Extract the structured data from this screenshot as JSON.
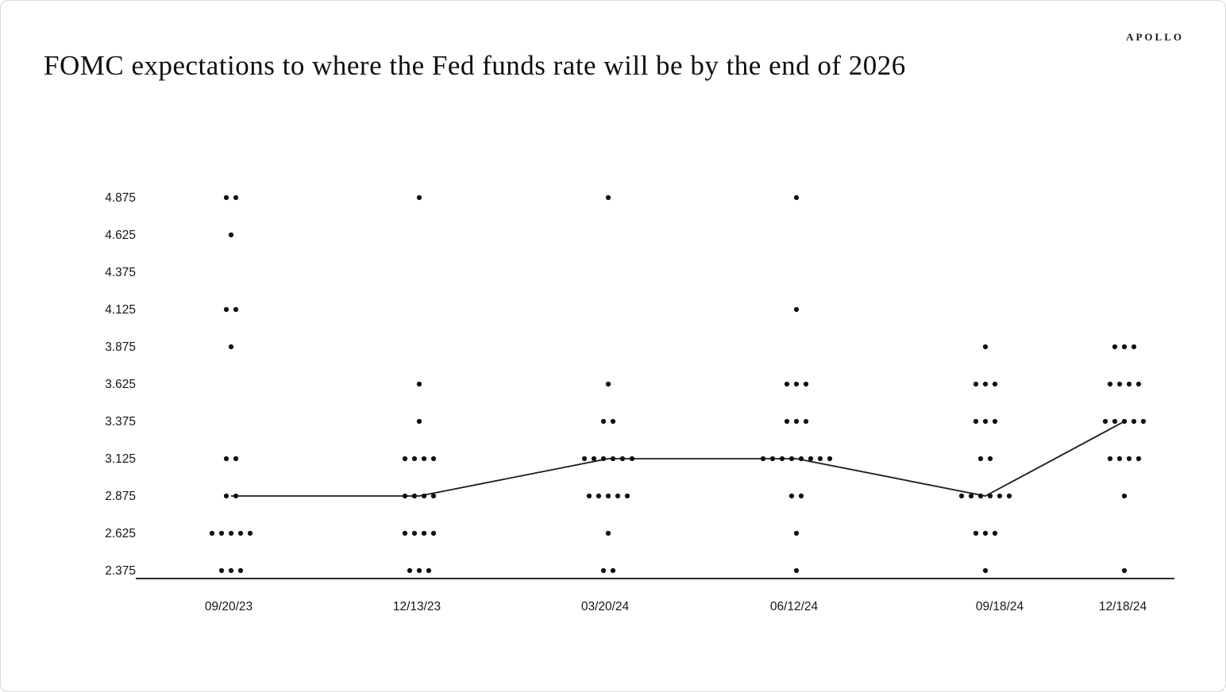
{
  "header": {
    "brand": "APOLLO",
    "title": "FOMC expectations to where the Fed funds rate will be by the end of 2026"
  },
  "chart_data": {
    "type": "scatter",
    "subtype": "fomc-dot-plot",
    "title": "FOMC expectations to where the Fed funds rate will be by the end of 2026",
    "xlabel": "",
    "ylabel": "",
    "grid": false,
    "legend": null,
    "x_categories": [
      "09/20/23",
      "12/13/23",
      "03/20/24",
      "06/12/24",
      "09/18/24",
      "12/18/24"
    ],
    "y_tick_labels": [
      "4.875",
      "4.625",
      "4.375",
      "4.125",
      "3.875",
      "3.625",
      "3.375",
      "3.125",
      "2.875",
      "2.625",
      "2.375"
    ],
    "ylim": [
      2.375,
      4.875
    ],
    "y_step": 0.25,
    "dot_counts_by_meeting": [
      {
        "date": "09/20/23",
        "counts": {
          "4.875": 2,
          "4.625": 1,
          "4.125": 2,
          "3.875": 1,
          "3.125": 2,
          "2.875": 2,
          "2.625": 5,
          "2.375": 3
        }
      },
      {
        "date": "12/13/23",
        "counts": {
          "4.875": 1,
          "3.625": 1,
          "3.375": 1,
          "3.125": 4,
          "2.875": 4,
          "2.625": 4,
          "2.375": 3
        }
      },
      {
        "date": "03/20/24",
        "counts": {
          "4.875": 1,
          "3.625": 1,
          "3.375": 2,
          "3.125": 6,
          "2.875": 5,
          "2.625": 1,
          "2.375": 2
        }
      },
      {
        "date": "06/12/24",
        "counts": {
          "4.875": 1,
          "4.125": 1,
          "3.625": 3,
          "3.375": 3,
          "3.125": 8,
          "2.875": 2,
          "2.625": 1,
          "2.375": 1
        }
      },
      {
        "date": "09/18/24",
        "counts": {
          "3.875": 1,
          "3.625": 3,
          "3.375": 3,
          "3.125": 2,
          "2.875": 6,
          "2.625": 3,
          "2.375": 1
        }
      },
      {
        "date": "12/18/24",
        "counts": {
          "3.875": 3,
          "3.625": 4,
          "3.375": 5,
          "3.125": 4,
          "2.875": 1,
          "2.375": 1
        }
      }
    ],
    "median_series": {
      "name": "Median projection",
      "x": [
        "09/20/23",
        "12/13/23",
        "03/20/24",
        "06/12/24",
        "09/18/24",
        "12/18/24"
      ],
      "values": [
        2.875,
        2.875,
        3.125,
        3.125,
        2.875,
        3.375
      ]
    },
    "colors": {
      "dot": "#111111",
      "median_line": "#1c1c1c",
      "axis_line": "#2a2a2a",
      "tick_text": "#151515"
    }
  }
}
